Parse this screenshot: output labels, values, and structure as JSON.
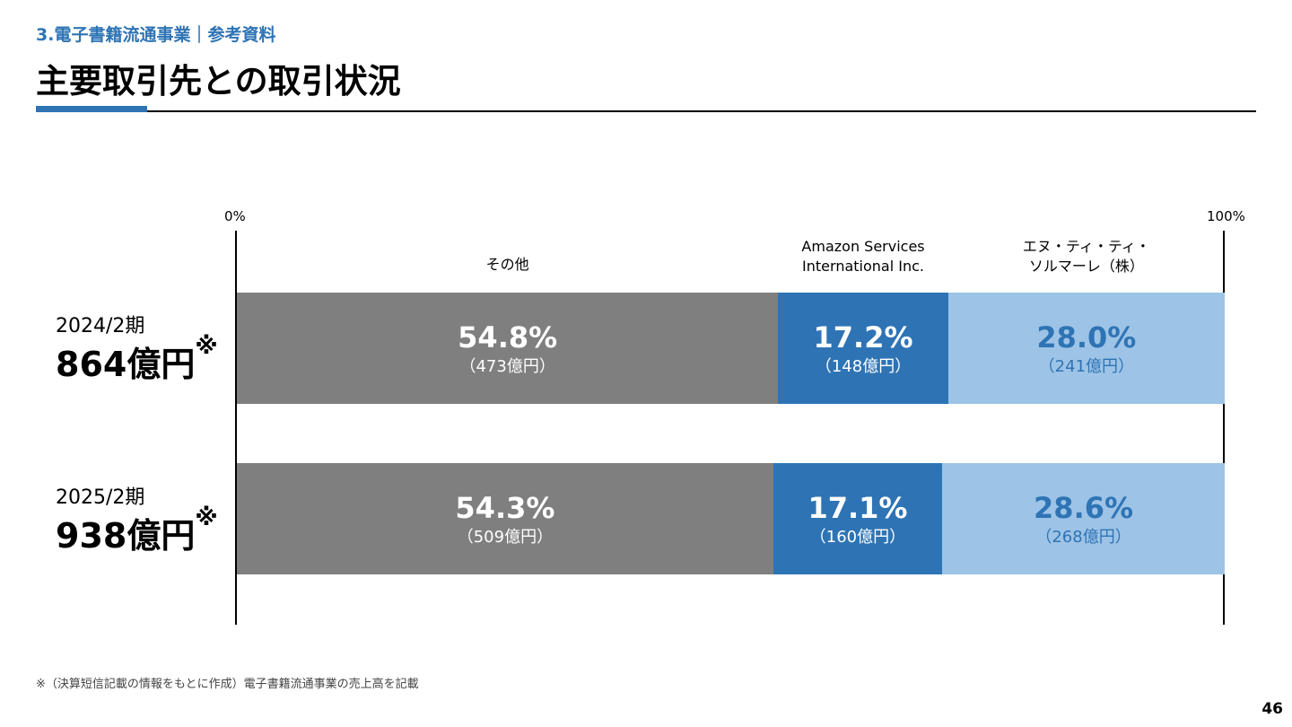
{
  "header": {
    "section": "3.電子書籍流通事業｜参考資料",
    "title": "主要取引先との取引状況"
  },
  "chart_data": {
    "type": "bar",
    "orientation": "horizontal",
    "stacked": true,
    "scale": {
      "min_label": "0%",
      "max_label": "100%"
    },
    "categories": [
      "その他",
      "Amazon Services\nInternational Inc.",
      "エヌ・ティ・ティ・\nソルマーレ（株）"
    ],
    "colors": [
      "#7f7f7f",
      "#2e74b5",
      "#9dc3e6"
    ],
    "text_colors": [
      "#ffffff",
      "#ffffff",
      "#2e74b5"
    ],
    "rows": [
      {
        "period": "2024/2期",
        "total": "864億円",
        "mark": "※",
        "values": [
          54.8,
          17.2,
          28.0
        ],
        "pct_labels": [
          "54.8%",
          "17.2%",
          "28.0%"
        ],
        "amount_labels": [
          "（473億円）",
          "（148億円）",
          "（241億円）"
        ]
      },
      {
        "period": "2025/2期",
        "total": "938億円",
        "mark": "※",
        "values": [
          54.3,
          17.1,
          28.6
        ],
        "pct_labels": [
          "54.3%",
          "17.1%",
          "28.6%"
        ],
        "amount_labels": [
          "（509億円）",
          "（160億円）",
          "（268億円）"
        ]
      }
    ]
  },
  "footnote": "※（決算短信記載の情報をもとに作成）電子書籍流通事業の売上高を記載",
  "page_number": "46"
}
